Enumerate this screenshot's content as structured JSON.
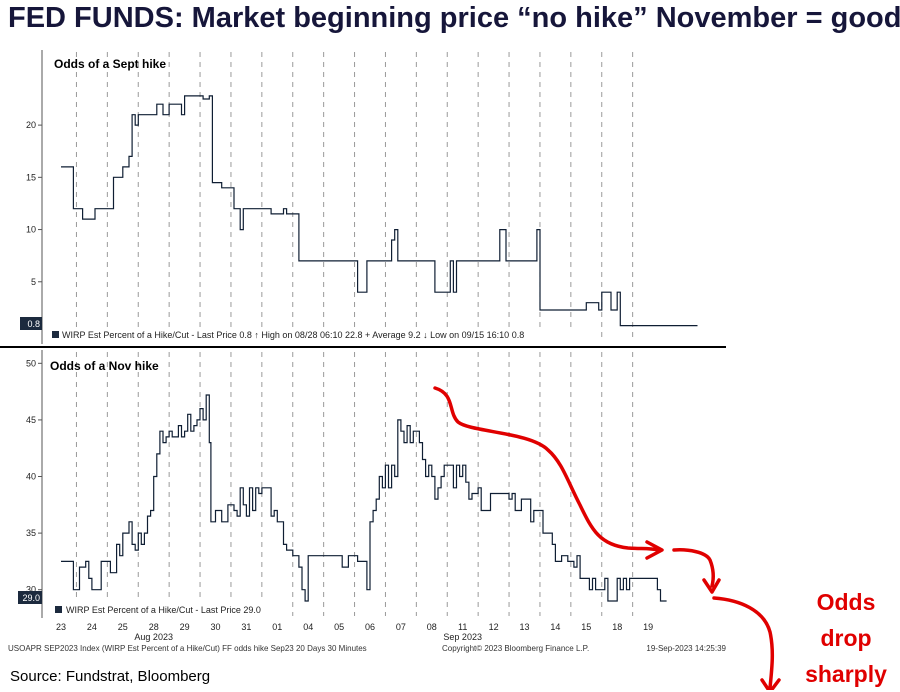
{
  "headline": "FED FUNDS: Market beginning price “no hike” November = good",
  "source": "Source: Fundstrat, Bloomberg",
  "annotation": [
    "Odds",
    "drop",
    "sharply"
  ],
  "colors": {
    "line": "#0f1e33",
    "grid": "#9a9a9a",
    "headline": "#16163a",
    "annotation": "#e00000",
    "tag_bg": "#1c2a3e"
  },
  "x_axis": {
    "day_labels": [
      "23",
      "24",
      "25",
      "28",
      "29",
      "30",
      "31",
      "01",
      "04",
      "05",
      "06",
      "07",
      "08",
      "11",
      "12",
      "13",
      "14",
      "15",
      "18",
      "19"
    ],
    "month_labels": [
      {
        "label": "Aug 2023",
        "at_index": 3
      },
      {
        "label": "Sep 2023",
        "at_index": 13
      }
    ]
  },
  "footer": {
    "left": "USOAPR SEP2023 Index (WIRP Est Percent of a Hike/Cut) FF odds hike Sep23 20 Days 30 Minutes",
    "center": "Copyright© 2023 Bloomberg Finance L.P.",
    "right": "19-Sep-2023 14:25:39"
  },
  "chart_data": [
    {
      "type": "line",
      "title": "Odds of a Sept hike",
      "ylim": [
        0,
        27
      ],
      "yticks": [
        5,
        10,
        15,
        20
      ],
      "last_value_tag": "0.8",
      "legend": "WIRP Est Percent of a Hike/Cut - Last Price 0.8   ↑ High on 08/28 06:10 22.8   + Average 9.2   ↓ Low on 09/15 16:10 0.8",
      "series": [
        {
          "values": [
            [
              0,
              16
            ],
            [
              0.3,
              16
            ],
            [
              0.4,
              12
            ],
            [
              0.6,
              12
            ],
            [
              0.7,
              11
            ],
            [
              1.0,
              11
            ],
            [
              1.1,
              12
            ],
            [
              1.3,
              12
            ],
            [
              1.6,
              12
            ],
            [
              1.7,
              15
            ],
            [
              1.9,
              15
            ],
            [
              2.0,
              16
            ],
            [
              2.1,
              16
            ],
            [
              2.2,
              17
            ],
            [
              2.3,
              21
            ],
            [
              2.4,
              20
            ],
            [
              2.5,
              21
            ],
            [
              2.8,
              21
            ],
            [
              3.0,
              21
            ],
            [
              3.1,
              22
            ],
            [
              3.3,
              21
            ],
            [
              3.5,
              22
            ],
            [
              3.7,
              22
            ],
            [
              3.9,
              21
            ],
            [
              4.0,
              22.8
            ],
            [
              4.4,
              22.8
            ],
            [
              4.6,
              22.5
            ],
            [
              4.8,
              22.8
            ],
            [
              4.9,
              14.5
            ],
            [
              5.2,
              14
            ],
            [
              5.4,
              14
            ],
            [
              5.6,
              12
            ],
            [
              5.7,
              12
            ],
            [
              5.8,
              10
            ],
            [
              5.9,
              12
            ],
            [
              6.3,
              12
            ],
            [
              6.7,
              12
            ],
            [
              6.8,
              11.5
            ],
            [
              7.0,
              11.5
            ],
            [
              7.2,
              12
            ],
            [
              7.3,
              11.5
            ],
            [
              7.5,
              11.5
            ],
            [
              7.7,
              7
            ],
            [
              8.0,
              7
            ],
            [
              9.0,
              7
            ],
            [
              9.5,
              7
            ],
            [
              9.6,
              4
            ],
            [
              9.8,
              4
            ],
            [
              9.9,
              7
            ],
            [
              10.5,
              7
            ],
            [
              10.7,
              9
            ],
            [
              10.8,
              10
            ],
            [
              10.9,
              7
            ],
            [
              11.5,
              7
            ],
            [
              12.0,
              7
            ],
            [
              12.1,
              4
            ],
            [
              12.4,
              4
            ],
            [
              12.6,
              7
            ],
            [
              12.7,
              4
            ],
            [
              12.8,
              7
            ],
            [
              14.0,
              7
            ],
            [
              14.2,
              10
            ],
            [
              14.4,
              7
            ],
            [
              15.0,
              7
            ],
            [
              15.3,
              7
            ],
            [
              15.4,
              10
            ],
            [
              15.5,
              2.3
            ],
            [
              16.0,
              2.3
            ],
            [
              16.5,
              2.3
            ],
            [
              16.9,
              2.3
            ],
            [
              17.0,
              3
            ],
            [
              17.3,
              3
            ],
            [
              17.4,
              2.3
            ],
            [
              17.5,
              4
            ],
            [
              17.7,
              4
            ],
            [
              17.8,
              2.3
            ],
            [
              17.9,
              2.3
            ],
            [
              18.0,
              4
            ],
            [
              18.1,
              0.8
            ],
            [
              19.0,
              0.8
            ],
            [
              20.0,
              0.8
            ],
            [
              20.6,
              0.8
            ]
          ]
        }
      ]
    },
    {
      "type": "line",
      "title": "Odds of a Nov hike",
      "ylim": [
        27.5,
        51
      ],
      "yticks": [
        30,
        35,
        40,
        45,
        50
      ],
      "last_value_tag": "29.0",
      "legend": "WIRP Est Percent of a Hike/Cut - Last Price 29.0",
      "series": [
        {
          "values": [
            [
              0,
              32.5
            ],
            [
              0.3,
              32.5
            ],
            [
              0.4,
              30
            ],
            [
              0.6,
              32
            ],
            [
              0.8,
              32.5
            ],
            [
              0.9,
              31
            ],
            [
              1.0,
              30
            ],
            [
              1.2,
              30
            ],
            [
              1.3,
              32.5
            ],
            [
              1.5,
              32.5
            ],
            [
              1.6,
              31.5
            ],
            [
              1.8,
              34
            ],
            [
              1.9,
              33
            ],
            [
              2.0,
              35
            ],
            [
              2.1,
              35
            ],
            [
              2.2,
              36
            ],
            [
              2.3,
              34
            ],
            [
              2.4,
              33.5
            ],
            [
              2.5,
              35
            ],
            [
              2.6,
              34
            ],
            [
              2.7,
              35
            ],
            [
              2.8,
              36.5
            ],
            [
              2.9,
              37
            ],
            [
              3.0,
              40
            ],
            [
              3.1,
              42
            ],
            [
              3.2,
              44
            ],
            [
              3.3,
              43
            ],
            [
              3.4,
              43.5
            ],
            [
              3.5,
              44
            ],
            [
              3.6,
              43.5
            ],
            [
              3.7,
              43.5
            ],
            [
              3.8,
              44.5
            ],
            [
              3.9,
              43.5
            ],
            [
              4.0,
              44
            ],
            [
              4.1,
              45.5
            ],
            [
              4.2,
              44
            ],
            [
              4.3,
              44.5
            ],
            [
              4.4,
              45
            ],
            [
              4.5,
              46
            ],
            [
              4.6,
              45
            ],
            [
              4.7,
              47.2
            ],
            [
              4.8,
              43
            ],
            [
              4.85,
              36
            ],
            [
              5.0,
              37
            ],
            [
              5.2,
              36
            ],
            [
              5.4,
              37.5
            ],
            [
              5.6,
              37
            ],
            [
              5.7,
              36.5
            ],
            [
              5.8,
              39
            ],
            [
              5.9,
              37.5
            ],
            [
              6.0,
              36.5
            ],
            [
              6.1,
              39
            ],
            [
              6.2,
              37
            ],
            [
              6.3,
              39
            ],
            [
              6.4,
              38.5
            ],
            [
              6.5,
              39
            ],
            [
              6.7,
              39
            ],
            [
              6.8,
              36.5
            ],
            [
              6.9,
              37
            ],
            [
              7.0,
              36
            ],
            [
              7.1,
              36
            ],
            [
              7.2,
              34
            ],
            [
              7.3,
              33.5
            ],
            [
              7.5,
              33
            ],
            [
              7.7,
              32
            ],
            [
              7.8,
              30
            ],
            [
              7.9,
              29
            ],
            [
              8.0,
              33
            ],
            [
              8.1,
              33
            ],
            [
              8.5,
              33
            ],
            [
              9.0,
              33
            ],
            [
              9.1,
              32
            ],
            [
              9.3,
              33
            ],
            [
              9.6,
              32.5
            ],
            [
              9.8,
              32.5
            ],
            [
              9.9,
              30
            ],
            [
              10.0,
              36
            ],
            [
              10.1,
              37
            ],
            [
              10.2,
              38
            ],
            [
              10.3,
              40
            ],
            [
              10.4,
              39
            ],
            [
              10.5,
              41
            ],
            [
              10.6,
              39
            ],
            [
              10.7,
              41
            ],
            [
              10.8,
              40
            ],
            [
              10.9,
              45
            ],
            [
              11.0,
              44
            ],
            [
              11.1,
              43
            ],
            [
              11.2,
              44.5
            ],
            [
              11.3,
              43
            ],
            [
              11.4,
              44
            ],
            [
              11.5,
              44
            ],
            [
              11.6,
              43
            ],
            [
              11.7,
              41.5
            ],
            [
              11.8,
              40
            ],
            [
              11.9,
              41
            ],
            [
              12.0,
              40
            ],
            [
              12.1,
              38
            ],
            [
              12.2,
              39
            ],
            [
              12.3,
              40
            ],
            [
              12.4,
              41
            ],
            [
              12.6,
              41
            ],
            [
              12.7,
              39
            ],
            [
              12.8,
              41
            ],
            [
              12.9,
              40
            ],
            [
              13.0,
              41
            ],
            [
              13.1,
              39.5
            ],
            [
              13.2,
              38
            ],
            [
              13.3,
              38.5
            ],
            [
              13.5,
              39
            ],
            [
              13.6,
              37
            ],
            [
              13.8,
              37
            ],
            [
              13.9,
              38.5
            ],
            [
              14.2,
              38.5
            ],
            [
              14.5,
              38
            ],
            [
              14.6,
              38.5
            ],
            [
              14.7,
              37
            ],
            [
              14.8,
              37
            ],
            [
              14.9,
              38
            ],
            [
              15.1,
              38
            ],
            [
              15.2,
              36
            ],
            [
              15.3,
              37
            ],
            [
              15.5,
              37
            ],
            [
              15.6,
              35
            ],
            [
              15.8,
              35
            ],
            [
              15.9,
              34
            ],
            [
              16.0,
              32.5
            ],
            [
              16.2,
              33
            ],
            [
              16.4,
              32.5
            ],
            [
              16.6,
              32
            ],
            [
              16.7,
              33
            ],
            [
              16.8,
              31
            ],
            [
              17.0,
              31
            ],
            [
              17.1,
              30
            ],
            [
              17.2,
              31
            ],
            [
              17.3,
              30
            ],
            [
              17.5,
              30
            ],
            [
              17.6,
              31
            ],
            [
              17.7,
              29
            ],
            [
              17.9,
              29
            ],
            [
              18.0,
              31
            ],
            [
              18.1,
              30
            ],
            [
              18.2,
              31
            ],
            [
              18.3,
              30
            ],
            [
              18.4,
              31
            ],
            [
              18.8,
              31
            ],
            [
              19.0,
              31
            ],
            [
              19.2,
              31
            ],
            [
              19.3,
              30
            ],
            [
              19.4,
              29
            ],
            [
              19.6,
              29
            ]
          ]
        }
      ]
    }
  ]
}
